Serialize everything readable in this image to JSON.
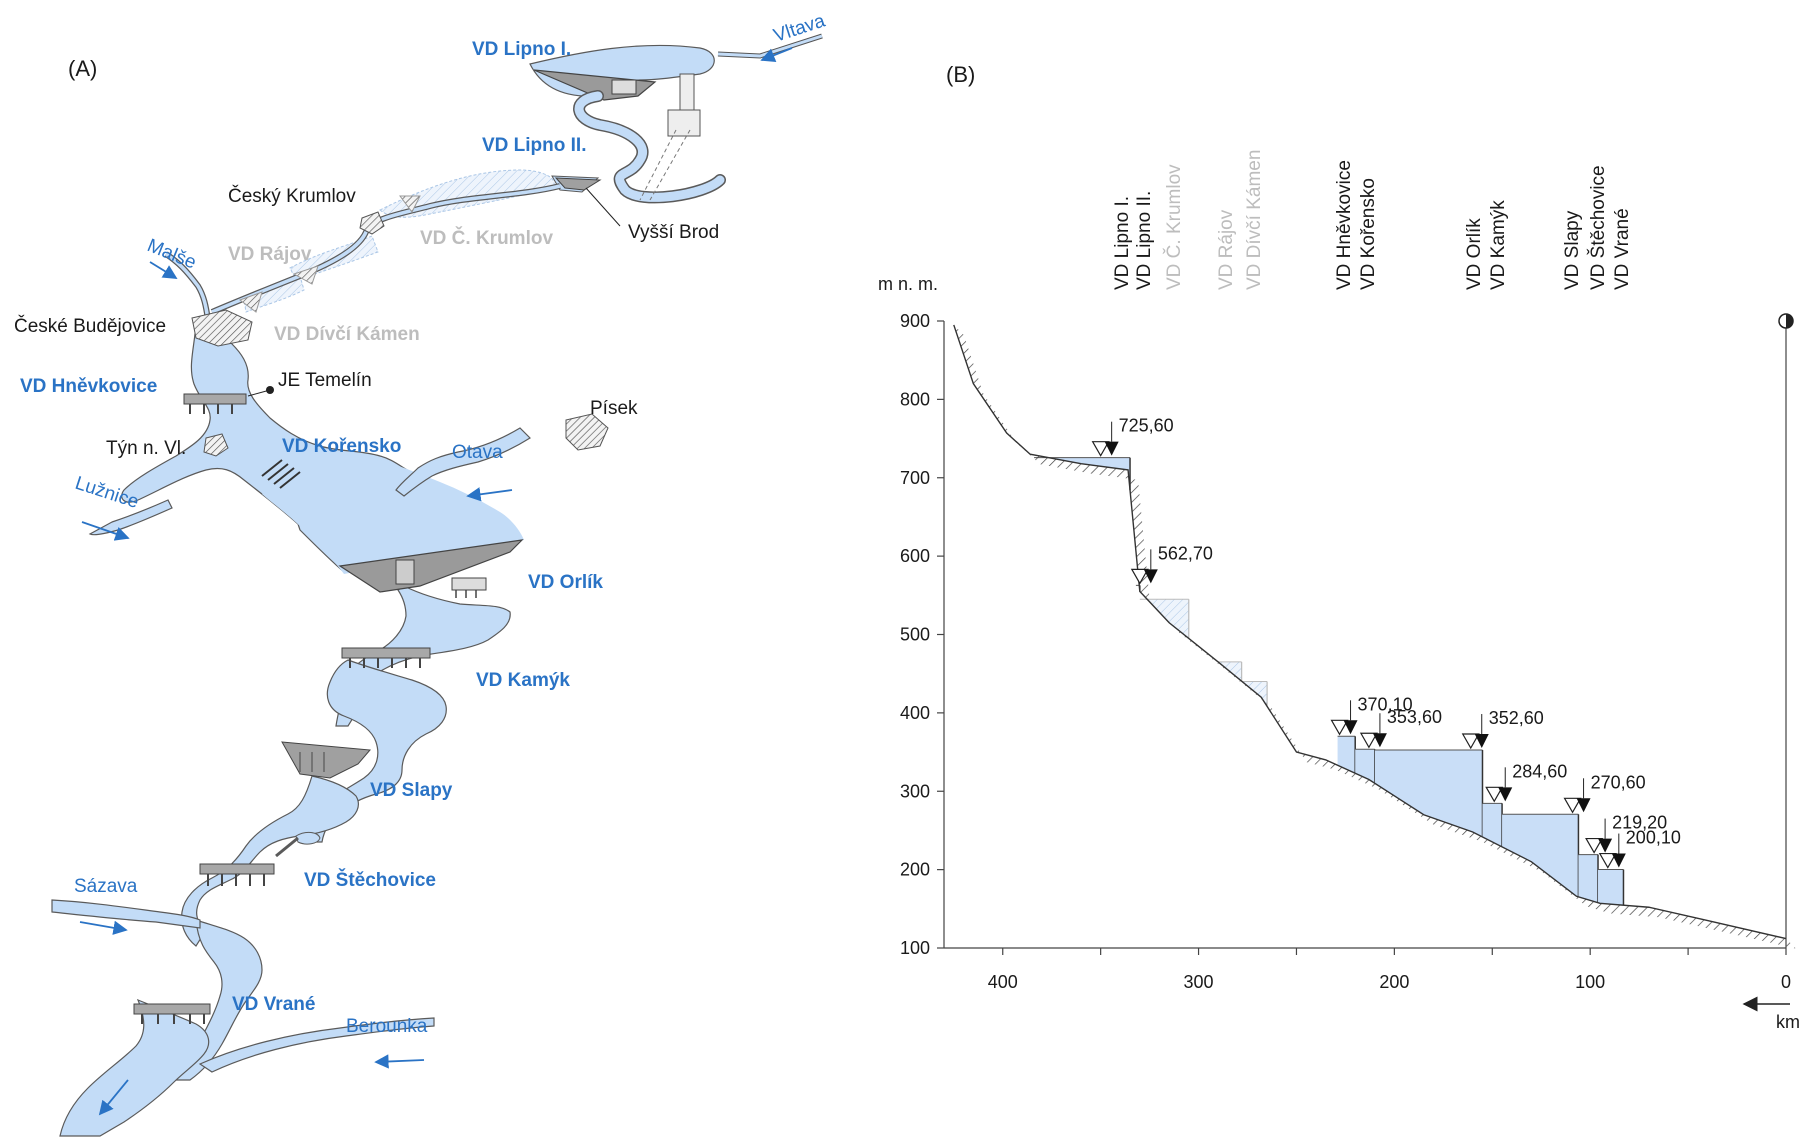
{
  "panel_a": {
    "label": "(A)",
    "dams_active": [
      {
        "id": "lipno1",
        "label": "VD Lipno I."
      },
      {
        "id": "lipno2",
        "label": "VD Lipno II."
      },
      {
        "id": "hnevkovice",
        "label": "VD Hněvkovice"
      },
      {
        "id": "korensko",
        "label": "VD Kořensko"
      },
      {
        "id": "orlik",
        "label": "VD Orlík"
      },
      {
        "id": "kamyk",
        "label": "VD Kamýk"
      },
      {
        "id": "slapy",
        "label": "VD Slapy"
      },
      {
        "id": "stechovice",
        "label": "VD Štěchovice"
      },
      {
        "id": "vrane",
        "label": "VD Vrané"
      }
    ],
    "dams_planned": [
      {
        "id": "rajov",
        "label": "VD Rájov"
      },
      {
        "id": "ckrumlov",
        "label": "VD Č. Krumlov"
      },
      {
        "id": "divci_kamen",
        "label": "VD Dívčí Kámen"
      }
    ],
    "towns": [
      {
        "id": "cesky_krumlov",
        "label": "Český Krumlov"
      },
      {
        "id": "vyssi_brod",
        "label": "Vyšší Brod"
      },
      {
        "id": "ceske_budejovice",
        "label": "České Budějovice"
      },
      {
        "id": "je_temelin",
        "label": "JE Temelín"
      },
      {
        "id": "tyn",
        "label": "Týn n. Vl."
      },
      {
        "id": "pisek",
        "label": "Písek"
      }
    ],
    "rivers": [
      {
        "id": "vltava",
        "label": "Vltava"
      },
      {
        "id": "malse",
        "label": "Malše"
      },
      {
        "id": "luznice",
        "label": "Lužnice"
      },
      {
        "id": "otava",
        "label": "Otava"
      },
      {
        "id": "sazava",
        "label": "Sázava"
      },
      {
        "id": "berounka",
        "label": "Berounka"
      }
    ],
    "colors": {
      "water": "#c3dcf7",
      "outline": "#5a5a5a",
      "accent": "#2a73c5",
      "planned": "#bdbdbd"
    }
  },
  "panel_b": {
    "label": "(B)",
    "column_labels_active": [
      {
        "id": "lipno1",
        "label": "VD Lipno I."
      },
      {
        "id": "lipno2",
        "label": "VD Lipno II."
      },
      {
        "id": "hnevkovice",
        "label": "VD Hněvkovice"
      },
      {
        "id": "korensko",
        "label": "VD Kořensko"
      },
      {
        "id": "orlik",
        "label": "VD Orlík"
      },
      {
        "id": "kamyk",
        "label": "VD Kamýk"
      },
      {
        "id": "slapy",
        "label": "VD Slapy"
      },
      {
        "id": "stechovice",
        "label": "VD Štěchovice"
      },
      {
        "id": "vrane",
        "label": "VD Vrané"
      }
    ],
    "column_labels_planned": [
      {
        "id": "ckrumlov",
        "label": "VD Č. Krumlov"
      },
      {
        "id": "rajov",
        "label": "VD Rájov"
      },
      {
        "id": "divci_kamen",
        "label": "VD Dívčí Kámen"
      }
    ],
    "level_labels": [
      {
        "id": "l725",
        "text": "725,60"
      },
      {
        "id": "l562",
        "text": "562,70"
      },
      {
        "id": "l370",
        "text": "370,10"
      },
      {
        "id": "l353",
        "text": "353,60"
      },
      {
        "id": "l352",
        "text": "352,60"
      },
      {
        "id": "l284",
        "text": "284,60"
      },
      {
        "id": "l270",
        "text": "270,60"
      },
      {
        "id": "l219",
        "text": "219,20"
      },
      {
        "id": "l200",
        "text": "200,10"
      }
    ]
  },
  "chart_data": {
    "type": "area",
    "xlabel": "km",
    "ylabel": "m n. m.",
    "xlim": [
      430,
      0
    ],
    "ylim": [
      100,
      900
    ],
    "x_ticks": [
      400,
      300,
      200,
      100,
      0
    ],
    "y_ticks": [
      100,
      200,
      300,
      400,
      500,
      600,
      700,
      800,
      900
    ],
    "x_direction": "decreasing",
    "riverbed": [
      [
        425,
        895
      ],
      [
        415,
        820
      ],
      [
        398,
        757
      ],
      [
        386,
        730
      ],
      [
        360,
        718
      ],
      [
        336,
        710
      ],
      [
        330,
        555
      ],
      [
        315,
        515
      ],
      [
        290,
        465
      ],
      [
        268,
        420
      ],
      [
        250,
        350
      ],
      [
        235,
        340
      ],
      [
        213,
        315
      ],
      [
        185,
        270
      ],
      [
        160,
        248
      ],
      [
        130,
        210
      ],
      [
        107,
        166
      ],
      [
        95,
        157
      ],
      [
        70,
        152
      ],
      [
        40,
        135
      ],
      [
        0,
        112
      ]
    ],
    "reservoirs_active": [
      {
        "name": "VD Lipno I.",
        "x_start": 384,
        "x_end": 335,
        "level": 725.6
      },
      {
        "name": "VD Lipno II.",
        "x_start": 332,
        "x_end": 330,
        "level": 562.7
      },
      {
        "name": "VD Hněvkovice",
        "x_start": 229,
        "x_end": 220,
        "level": 370.1
      },
      {
        "name": "VD Kořensko",
        "x_start": 220,
        "x_end": 210,
        "level": 353.6
      },
      {
        "name": "VD Orlík",
        "x_start": 210,
        "x_end": 155,
        "level": 352.6
      },
      {
        "name": "VD Kamýk",
        "x_start": 155,
        "x_end": 145,
        "level": 284.6
      },
      {
        "name": "VD Slapy",
        "x_start": 145,
        "x_end": 106,
        "level": 270.6
      },
      {
        "name": "VD Štěchovice",
        "x_start": 106,
        "x_end": 96,
        "level": 219.2
      },
      {
        "name": "VD Vrané",
        "x_start": 96,
        "x_end": 83,
        "level": 200.1
      }
    ],
    "reservoirs_planned": [
      {
        "name": "VD Č. Krumlov",
        "x_start": 330,
        "x_end": 305,
        "level": 545
      },
      {
        "name": "VD Rájov",
        "x_start": 290,
        "x_end": 278,
        "level": 465
      },
      {
        "name": "VD Dívčí Kámen",
        "x_start": 278,
        "x_end": 265,
        "level": 440
      }
    ],
    "dam_markers": [
      {
        "x": 350,
        "level": 725.6,
        "label": "725,60"
      },
      {
        "x": 330,
        "level": 562.7,
        "label": "562,70"
      },
      {
        "x": 228,
        "level": 370.1,
        "label": "370,10"
      },
      {
        "x": 213,
        "level": 353.6,
        "label": "353,60"
      },
      {
        "x": 161,
        "level": 352.6,
        "label": "352,60"
      },
      {
        "x": 149,
        "level": 284.6,
        "label": "284,60"
      },
      {
        "x": 109,
        "level": 270.6,
        "label": "270,60"
      },
      {
        "x": 98,
        "level": 219.2,
        "label": "219,20"
      },
      {
        "x": 91,
        "level": 200.1,
        "label": "200,10"
      }
    ],
    "colors": {
      "water": "#c9def7",
      "planned": "#e6effa",
      "hatch": "#444444"
    }
  }
}
